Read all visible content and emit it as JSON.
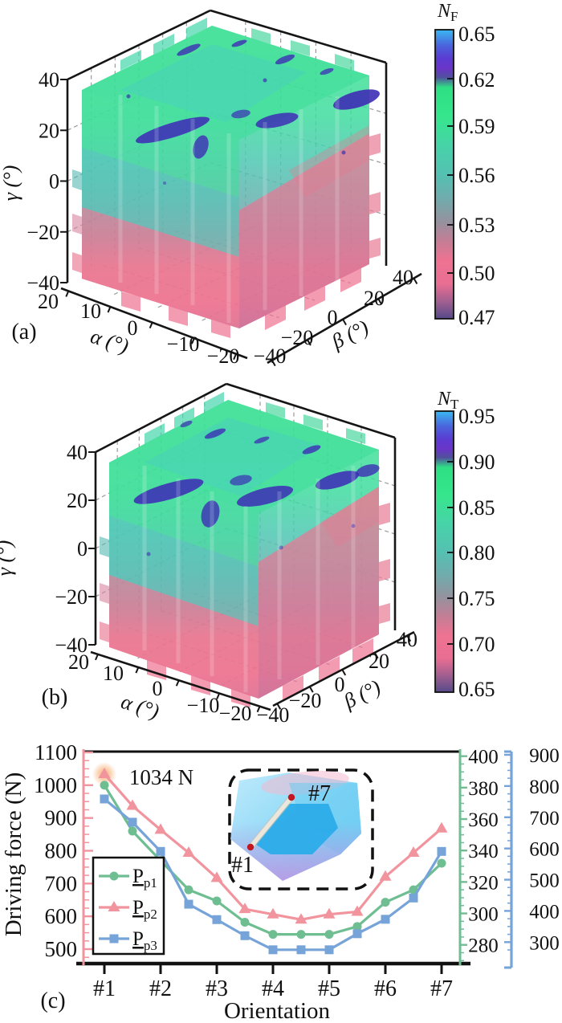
{
  "panel_a": {
    "label": "(a)",
    "gamma_axis": {
      "title": "γ (°)",
      "ticks": [
        "40",
        "20",
        "0",
        "−20",
        "−40"
      ]
    },
    "alpha_axis": {
      "title": "α (°)",
      "ticks": [
        "20",
        "10",
        "0",
        "−10",
        "−20"
      ]
    },
    "beta_axis": {
      "title": "β (°)",
      "ticks": [
        "−40",
        "−20",
        "0",
        "20",
        "40"
      ]
    },
    "colorbar": {
      "title_main": "N",
      "title_sub": "F",
      "tick_labels": [
        "0.65",
        "0.62",
        "0.59",
        "0.56",
        "0.53",
        "0.50",
        "0.47"
      ]
    }
  },
  "panel_b": {
    "label": "(b)",
    "gamma_axis": {
      "title": "γ (°)",
      "ticks": [
        "40",
        "20",
        "0",
        "−20",
        "−40"
      ]
    },
    "alpha_axis": {
      "title": "α (°)",
      "ticks": [
        "20",
        "10",
        "0",
        "−10",
        "−20"
      ]
    },
    "beta_axis": {
      "title": "β (°)",
      "ticks": [
        "−40",
        "−20",
        "0",
        "20",
        "40"
      ]
    },
    "colorbar": {
      "title_main": "N",
      "title_sub": "T",
      "tick_labels": [
        "0.95",
        "0.90",
        "0.85",
        "0.80",
        "0.75",
        "0.70",
        "0.65"
      ]
    }
  },
  "panel_c": {
    "label": "(c)",
    "y_left_axis": {
      "title": "Driving force (N)",
      "tick_labels": [
        "1100",
        "1000",
        "900",
        "800",
        "700",
        "600",
        "500"
      ]
    },
    "y_right_green_axis": {
      "tick_labels": [
        "400",
        "380",
        "360",
        "340",
        "320",
        "300",
        "280"
      ]
    },
    "y_right_blue_axis": {
      "tick_labels": [
        "900",
        "800",
        "700",
        "600",
        "500",
        "400",
        "300"
      ]
    },
    "x_axis": {
      "title": "Orientation",
      "tick_labels": [
        "#1",
        "#2",
        "#3",
        "#4",
        "#5",
        "#6",
        "#7"
      ]
    },
    "legend": [
      {
        "main": "P",
        "sub": "p1"
      },
      {
        "main": "P",
        "sub": "p2"
      },
      {
        "main": "P",
        "sub": "p3"
      }
    ],
    "annotation": {
      "text": "1034 N"
    },
    "inset": {
      "start_label": "#1",
      "end_label": "#7",
      "dot_color": "#C01722"
    }
  },
  "chart_data": [
    {
      "type": "heatmap",
      "panel": "(a)",
      "plot_kind": "3d_orthogonal_slice_volume",
      "axes": {
        "alpha": {
          "label": "α (°)",
          "ticks": [
            20,
            10,
            0,
            -10,
            -20
          ]
        },
        "beta": {
          "label": "β (°)",
          "ticks": [
            -40,
            -20,
            0,
            20,
            40
          ]
        },
        "gamma": {
          "label": "γ (°)",
          "ticks": [
            40,
            20,
            0,
            -20,
            -40
          ]
        }
      },
      "colorbar": {
        "label": "N_F",
        "range": [
          0.47,
          0.65
        ],
        "ticks": [
          0.65,
          0.62,
          0.59,
          0.56,
          0.53,
          0.5,
          0.47
        ]
      },
      "palette_hint": [
        "#3AB9F2",
        "#5B3BD2",
        "#2FDF84",
        "#52C1B2",
        "#EF7292",
        "#55498A"
      ],
      "summary": "Quality index N_F over tool orientations: green/teal (≈0.56–0.60) in upper γ half, pink (≈0.47–0.52) in lower γ half, dark-blue pockets (≈0.62) near γ≈20–35°."
    },
    {
      "type": "heatmap",
      "panel": "(b)",
      "plot_kind": "3d_orthogonal_slice_volume",
      "axes": {
        "alpha": {
          "label": "α (°)",
          "ticks": [
            20,
            10,
            0,
            -10,
            -20
          ]
        },
        "beta": {
          "label": "β (°)",
          "ticks": [
            -40,
            -20,
            0,
            20,
            40
          ]
        },
        "gamma": {
          "label": "γ (°)",
          "ticks": [
            40,
            20,
            0,
            -20,
            -40
          ]
        }
      },
      "colorbar": {
        "label": "N_T",
        "range": [
          0.65,
          0.95
        ],
        "ticks": [
          0.95,
          0.9,
          0.85,
          0.8,
          0.75,
          0.7,
          0.65
        ]
      },
      "palette_hint": [
        "#3AB9F2",
        "#5B3BD2",
        "#2FDF84",
        "#52C1B2",
        "#EF7292",
        "#55498A"
      ],
      "summary": "Quality index N_T over tool orientations: green band (≈0.85–0.90) with dark-blue streaks (≈0.92) near γ≈20–30°, teal mid-range, pink (≈0.68–0.72) lower/right region."
    },
    {
      "type": "line",
      "panel": "(c)",
      "xlabel": "Orientation",
      "x_tick_labels": [
        "#1",
        "#2",
        "#3",
        "#4",
        "#5",
        "#6",
        "#7"
      ],
      "x": [
        1,
        1.5,
        2,
        2.5,
        3,
        3.5,
        4,
        4.5,
        5,
        5.5,
        6,
        6.5,
        7
      ],
      "y_axes": {
        "left": {
          "label": "Driving force (N)",
          "ticks": [
            1100,
            1000,
            900,
            800,
            700,
            600,
            500
          ],
          "axis_color": "#F2949E"
        },
        "right_green": {
          "ticks": [
            400,
            380,
            360,
            340,
            320,
            300,
            280
          ],
          "axis_color": "#6FBE92"
        },
        "right_blue": {
          "ticks": [
            900,
            800,
            700,
            600,
            500,
            400,
            300
          ],
          "axis_color": "#76A3D8"
        }
      },
      "series": [
        {
          "name": "Pp1",
          "marker": "circle",
          "color": "#6FBE92",
          "axis": "right_green",
          "values_as_plotted_N": [
            1000,
            860,
            770,
            681,
            647,
            582,
            545,
            545,
            545,
            569,
            643,
            681,
            762
          ]
        },
        {
          "name": "Pp2",
          "marker": "triangle",
          "color": "#F2949E",
          "axis": "left",
          "values_as_plotted_N": [
            1034,
            937,
            864,
            794,
            717,
            622,
            606,
            590,
            606,
            614,
            721,
            794,
            868
          ]
        },
        {
          "name": "Pp3",
          "marker": "square",
          "color": "#76A3D8",
          "axis": "right_blue",
          "values_as_plotted_N": [
            958,
            887,
            798,
            637,
            590,
            541,
            498,
            498,
            498,
            547,
            591,
            656,
            798
          ]
        }
      ],
      "annotation": {
        "text": "1034 N",
        "x": 1,
        "value_N": 1034,
        "color": "#F2959E",
        "glow_color": "#F7A35F"
      },
      "legend_position": "lower-left",
      "grid": false
    }
  ]
}
